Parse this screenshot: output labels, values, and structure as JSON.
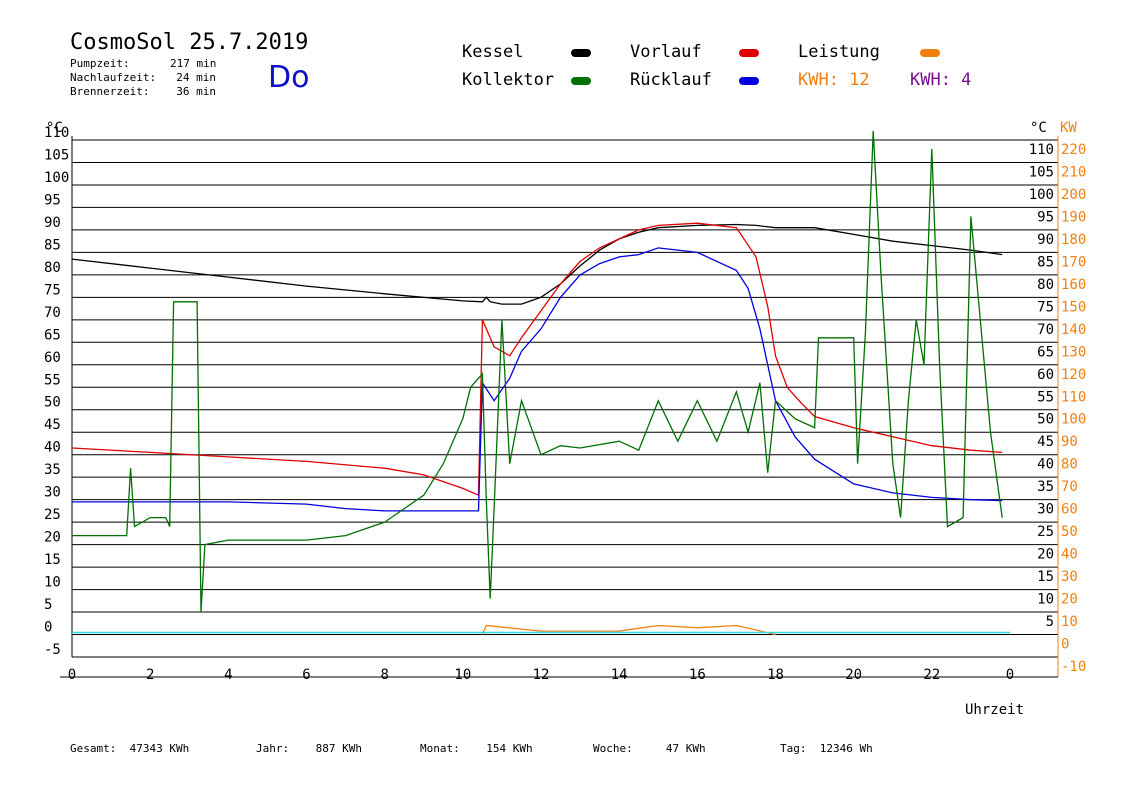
{
  "header": {
    "title": "CosmoSol 25.7.2019",
    "day": "Do",
    "stats": [
      {
        "label": "Pumpzeit:",
        "value": "217 min"
      },
      {
        "label": "Nachlaufzeit:",
        "value": "24 min"
      },
      {
        "label": "Brennerzeit:",
        "value": "36 min"
      }
    ]
  },
  "legend": {
    "kessel": {
      "label": "Kessel",
      "color": "#000000"
    },
    "vorlauf": {
      "label": "Vorlauf",
      "color": "#e00000"
    },
    "leistung": {
      "label": "Leistung",
      "color": "#f08010"
    },
    "kollektor": {
      "label": "Kollektor",
      "color": "#007000"
    },
    "ruecklauf": {
      "label": "Rücklauf",
      "color": "#0000e0"
    },
    "kwh1": {
      "label": "KWH: 12",
      "color": "#f08010"
    },
    "kwh2": {
      "label": "KWH: 4",
      "color": "#7a1090"
    }
  },
  "footer": {
    "gesamt": {
      "label": "Gesamt:",
      "value": "47343 KWh"
    },
    "jahr": {
      "label": "Jahr:",
      "value": "887 KWh"
    },
    "monat": {
      "label": "Monat:",
      "value": "154 KWh"
    },
    "woche": {
      "label": "Woche:",
      "value": "47 KWh"
    },
    "tag": {
      "label": "Tag:",
      "value": "12346 Wh"
    }
  },
  "chart_data": {
    "type": "line",
    "title": "CosmoSol 25.7.2019",
    "xlabel": "Uhrzeit",
    "ylabel_left": "°C",
    "ylabel_right": "°C",
    "ylabel_right2": "KW",
    "xlim": [
      0,
      24
    ],
    "ylim": [
      -5,
      110
    ],
    "kw_lim": [
      -10,
      220
    ],
    "x_ticks": [
      "0",
      "2",
      "4",
      "6",
      "8",
      "10",
      "12",
      "14",
      "16",
      "18",
      "20",
      "22",
      "0"
    ],
    "y_ticks_left": [
      110,
      105,
      100,
      95,
      90,
      85,
      80,
      75,
      70,
      65,
      60,
      55,
      50,
      45,
      40,
      35,
      30,
      25,
      20,
      15,
      10,
      5,
      0,
      -5
    ],
    "y_ticks_right": [
      110,
      105,
      100,
      95,
      90,
      85,
      80,
      75,
      70,
      65,
      60,
      55,
      50,
      45,
      40,
      35,
      30,
      25,
      20,
      15,
      10,
      5
    ],
    "kw_ticks": [
      220,
      210,
      200,
      190,
      180,
      170,
      160,
      150,
      140,
      130,
      120,
      110,
      100,
      90,
      80,
      70,
      60,
      50,
      40,
      30,
      20,
      10,
      0,
      -10
    ],
    "grid": true,
    "series": [
      {
        "name": "Kessel",
        "color": "#000000",
        "points": [
          [
            0,
            83.5
          ],
          [
            2,
            81.5
          ],
          [
            4,
            79.5
          ],
          [
            6,
            77.5
          ],
          [
            8,
            75.8
          ],
          [
            10,
            74.2
          ],
          [
            10.5,
            74.0
          ],
          [
            10.6,
            75
          ],
          [
            10.7,
            74
          ],
          [
            11,
            73.5
          ],
          [
            11.5,
            73.5
          ],
          [
            12,
            75
          ],
          [
            12.5,
            78
          ],
          [
            13,
            82
          ],
          [
            13.5,
            85.5
          ],
          [
            14,
            88
          ],
          [
            14.5,
            89.5
          ],
          [
            15,
            90.5
          ],
          [
            16,
            91
          ],
          [
            17,
            91.2
          ],
          [
            17.5,
            91
          ],
          [
            18,
            90.5
          ],
          [
            19,
            90.5
          ],
          [
            20,
            89
          ],
          [
            21,
            87.5
          ],
          [
            22,
            86.5
          ],
          [
            23,
            85.5
          ],
          [
            23.8,
            84.5
          ]
        ]
      },
      {
        "name": "Vorlauf",
        "color": "#e00000",
        "points": [
          [
            0,
            41.5
          ],
          [
            2,
            40.5
          ],
          [
            4,
            39.5
          ],
          [
            6,
            38.5
          ],
          [
            8,
            37
          ],
          [
            9,
            35.5
          ],
          [
            10,
            32.5
          ],
          [
            10.4,
            31
          ],
          [
            10.5,
            70
          ],
          [
            10.8,
            64
          ],
          [
            11.2,
            62
          ],
          [
            11.5,
            66
          ],
          [
            12,
            72
          ],
          [
            12.5,
            78
          ],
          [
            13,
            83
          ],
          [
            13.5,
            86
          ],
          [
            14,
            88
          ],
          [
            14.5,
            90
          ],
          [
            15,
            91
          ],
          [
            16,
            91.5
          ],
          [
            17,
            90.5
          ],
          [
            17.5,
            84
          ],
          [
            17.8,
            73
          ],
          [
            18,
            62
          ],
          [
            18.3,
            55
          ],
          [
            18.6,
            52
          ],
          [
            19,
            48.5
          ],
          [
            20,
            46
          ],
          [
            21,
            44
          ],
          [
            22,
            42
          ],
          [
            23,
            41
          ],
          [
            23.8,
            40.5
          ]
        ]
      },
      {
        "name": "Rücklauf",
        "color": "#0000e0",
        "points": [
          [
            0,
            29.5
          ],
          [
            2,
            29.5
          ],
          [
            4,
            29.5
          ],
          [
            6,
            29
          ],
          [
            7,
            28
          ],
          [
            8,
            27.5
          ],
          [
            10.4,
            27.5
          ],
          [
            10.5,
            56
          ],
          [
            10.8,
            52
          ],
          [
            11.2,
            57
          ],
          [
            11.5,
            63
          ],
          [
            12,
            68
          ],
          [
            12.5,
            75
          ],
          [
            13,
            80
          ],
          [
            13.5,
            82.5
          ],
          [
            14,
            84
          ],
          [
            14.5,
            84.5
          ],
          [
            15,
            86
          ],
          [
            16,
            85
          ],
          [
            17,
            81
          ],
          [
            17.3,
            77
          ],
          [
            17.6,
            68
          ],
          [
            17.8,
            60
          ],
          [
            18,
            52
          ],
          [
            18.5,
            44
          ],
          [
            19,
            39
          ],
          [
            20,
            33.5
          ],
          [
            21,
            31.5
          ],
          [
            22,
            30.5
          ],
          [
            23,
            30
          ],
          [
            23.8,
            29.8
          ]
        ]
      },
      {
        "name": "Kollektor",
        "color": "#007000",
        "points": [
          [
            0,
            22
          ],
          [
            1.4,
            22
          ],
          [
            1.5,
            37
          ],
          [
            1.6,
            24
          ],
          [
            2,
            26
          ],
          [
            2.4,
            26
          ],
          [
            2.5,
            24
          ],
          [
            2.6,
            74
          ],
          [
            3.2,
            74
          ],
          [
            3.3,
            5
          ],
          [
            3.4,
            20
          ],
          [
            4,
            21
          ],
          [
            6,
            21
          ],
          [
            7,
            22
          ],
          [
            8,
            25
          ],
          [
            9,
            31
          ],
          [
            9.5,
            38
          ],
          [
            10,
            48
          ],
          [
            10.2,
            55
          ],
          [
            10.5,
            58
          ],
          [
            10.6,
            30
          ],
          [
            10.7,
            8
          ],
          [
            10.8,
            28
          ],
          [
            11,
            70
          ],
          [
            11.2,
            38
          ],
          [
            11.5,
            52
          ],
          [
            12,
            40
          ],
          [
            12.5,
            42
          ],
          [
            13,
            41.5
          ],
          [
            14,
            43
          ],
          [
            14.5,
            41
          ],
          [
            15,
            52
          ],
          [
            15.5,
            43
          ],
          [
            16,
            52
          ],
          [
            16.5,
            43
          ],
          [
            17,
            54
          ],
          [
            17.3,
            45
          ],
          [
            17.6,
            56
          ],
          [
            17.8,
            36
          ],
          [
            18,
            52
          ],
          [
            18.5,
            48
          ],
          [
            19,
            46
          ],
          [
            19.1,
            66
          ],
          [
            20,
            66
          ],
          [
            20.1,
            38
          ],
          [
            20.3,
            67
          ],
          [
            20.5,
            112
          ],
          [
            20.7,
            80
          ],
          [
            21,
            38
          ],
          [
            21.2,
            26
          ],
          [
            21.4,
            52
          ],
          [
            21.6,
            70
          ],
          [
            21.8,
            60
          ],
          [
            22,
            108
          ],
          [
            22.2,
            60
          ],
          [
            22.4,
            24
          ],
          [
            22.8,
            26
          ],
          [
            23,
            93
          ],
          [
            23.5,
            45
          ],
          [
            23.8,
            26
          ]
        ]
      },
      {
        "name": "Leistung",
        "color": "#f08010",
        "points": [
          [
            10.5,
            0
          ],
          [
            10.6,
            4
          ],
          [
            12,
            1.5
          ],
          [
            14,
            1.5
          ],
          [
            15,
            4
          ],
          [
            16,
            3
          ],
          [
            17,
            4
          ],
          [
            18,
            0
          ]
        ]
      }
    ]
  }
}
